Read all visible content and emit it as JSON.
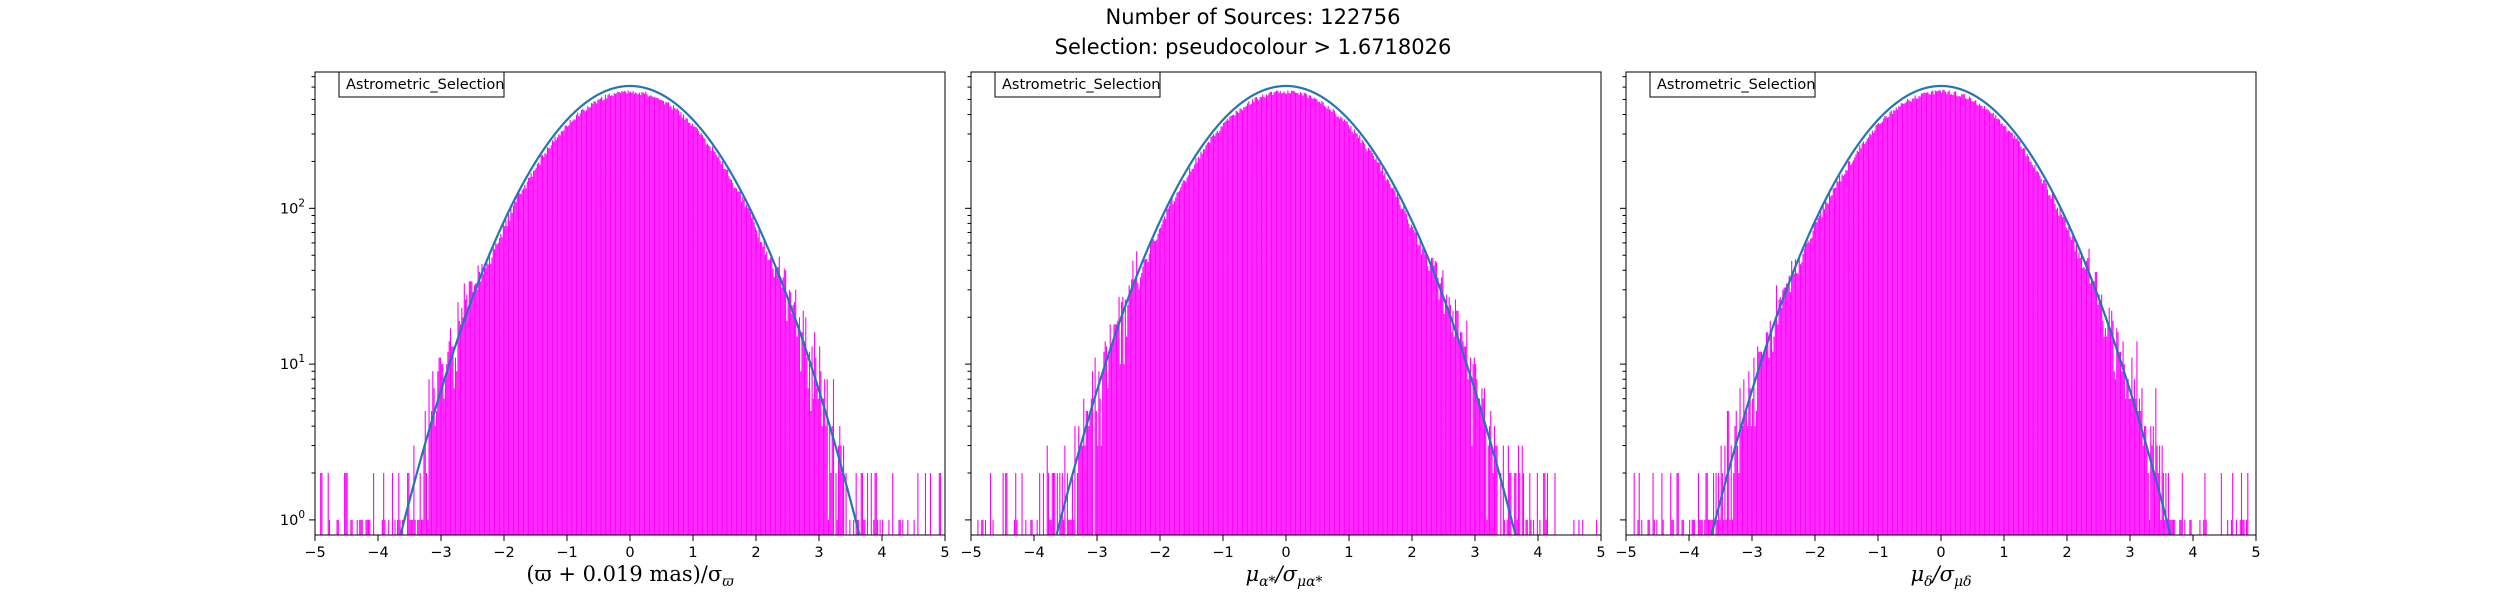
{
  "figure": {
    "title_line1": "Number of Sources: 122756",
    "title_line2": "Selection: pseudocolour > 1.6718026"
  },
  "colors": {
    "histogram": "#ff00ff",
    "model_curve": "#1f77b4",
    "model_curve_dark": "#2a7f7f",
    "axes": "#000000"
  },
  "chart_data": [
    {
      "type": "histogram",
      "legend": "Astrometric_Selection",
      "legend_placement": "top-left",
      "xlabel": {
        "main": "(ϖ + 0.019 mas)/σ",
        "sub": "ϖ"
      },
      "xlim": [
        -5,
        5
      ],
      "xticks": [
        -5,
        -4,
        -3,
        -2,
        -1,
        0,
        1,
        2,
        3,
        4,
        5
      ],
      "ylim": [
        0.8,
        750
      ],
      "yscale": "log",
      "yticks": [
        {
          "value": 1,
          "label": "10",
          "exp": "0"
        },
        {
          "value": 10,
          "label": "10",
          "exp": "1"
        },
        {
          "value": 100,
          "label": "10",
          "exp": "2"
        }
      ],
      "grid": false,
      "histogram": {
        "bins": 500,
        "peak": 560,
        "tail_noise": true
      },
      "model": {
        "kind": "gaussian",
        "mu": 0,
        "sigma": 1,
        "amplitude": 610
      }
    },
    {
      "type": "histogram",
      "legend": "Astrometric_Selection",
      "legend_placement": "top-left",
      "xlabel": {
        "main": "μ",
        "sub1": "α*",
        "mid": "/σ",
        "sub2": "μα*"
      },
      "xlim": [
        -5,
        5
      ],
      "xticks": [
        -5,
        -4,
        -3,
        -2,
        -1,
        0,
        1,
        2,
        3,
        4,
        5
      ],
      "ylim": [
        0.8,
        750
      ],
      "yscale": "log",
      "grid": false,
      "histogram": {
        "bins": 500,
        "peak": 560,
        "tail_noise": true
      },
      "model": {
        "kind": "gaussian",
        "mu": 0,
        "sigma": 1,
        "amplitude": 610
      }
    },
    {
      "type": "histogram",
      "legend": "Astrometric_Selection",
      "legend_placement": "top-left",
      "xlabel": {
        "main": "μ",
        "sub1": "δ",
        "mid": "/σ",
        "sub2": "μδ"
      },
      "xlim": [
        -5,
        5
      ],
      "xticks": [
        -5,
        -4,
        -3,
        -2,
        -1,
        0,
        1,
        2,
        3,
        4,
        5
      ],
      "ylim": [
        0.8,
        750
      ],
      "yscale": "log",
      "grid": false,
      "histogram": {
        "bins": 500,
        "peak": 560,
        "tail_noise": true
      },
      "model": {
        "kind": "gaussian",
        "mu": 0,
        "sigma": 1,
        "amplitude": 610
      }
    }
  ]
}
